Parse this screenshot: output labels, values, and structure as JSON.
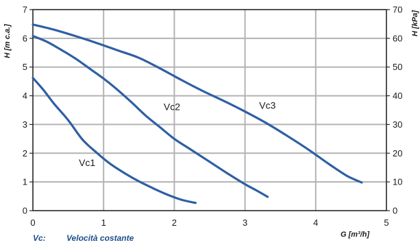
{
  "chart_data": {
    "type": "line",
    "xlabel": "G [m³/h]",
    "ylabel": "H [m c.a.]",
    "y2label": "H [kPa]",
    "xlim": [
      0,
      5
    ],
    "ylim": [
      0,
      7
    ],
    "y2lim": [
      0,
      70
    ],
    "xticks": [
      "0",
      "1",
      "2",
      "3",
      "4",
      "5"
    ],
    "yticks": [
      "0",
      "1",
      "2",
      "3",
      "4",
      "5",
      "6",
      "7"
    ],
    "y2ticks": [
      "0",
      "10",
      "20",
      "30",
      "40",
      "50",
      "60",
      "70"
    ],
    "grid": true,
    "line_color": "#2e5fa3",
    "grid_color": "#b3b3b3",
    "series": [
      {
        "name": "Vc1",
        "label_at": [
          0.65,
          1.55
        ],
        "points": [
          [
            0,
            4.62
          ],
          [
            0.15,
            4.2
          ],
          [
            0.3,
            3.72
          ],
          [
            0.5,
            3.15
          ],
          [
            0.7,
            2.48
          ],
          [
            0.9,
            2.02
          ],
          [
            1.1,
            1.62
          ],
          [
            1.3,
            1.3
          ],
          [
            1.5,
            1.02
          ],
          [
            1.7,
            0.78
          ],
          [
            1.9,
            0.56
          ],
          [
            2.1,
            0.38
          ],
          [
            2.3,
            0.27
          ]
        ]
      },
      {
        "name": "Vc2",
        "label_at": [
          1.85,
          3.5
        ],
        "points": [
          [
            0,
            6.08
          ],
          [
            0.2,
            5.88
          ],
          [
            0.4,
            5.6
          ],
          [
            0.6,
            5.3
          ],
          [
            0.8,
            4.95
          ],
          [
            1.0,
            4.6
          ],
          [
            1.2,
            4.2
          ],
          [
            1.4,
            3.76
          ],
          [
            1.6,
            3.3
          ],
          [
            1.8,
            2.9
          ],
          [
            2.0,
            2.5
          ],
          [
            2.25,
            2.1
          ],
          [
            2.5,
            1.7
          ],
          [
            2.75,
            1.3
          ],
          [
            3.0,
            0.92
          ],
          [
            3.15,
            0.72
          ],
          [
            3.32,
            0.48
          ]
        ]
      },
      {
        "name": "Vc3",
        "label_at": [
          3.2,
          3.55
        ],
        "points": [
          [
            0,
            6.48
          ],
          [
            0.3,
            6.3
          ],
          [
            0.6,
            6.08
          ],
          [
            0.9,
            5.84
          ],
          [
            1.2,
            5.58
          ],
          [
            1.5,
            5.32
          ],
          [
            1.8,
            4.95
          ],
          [
            2.1,
            4.55
          ],
          [
            2.4,
            4.17
          ],
          [
            2.7,
            3.82
          ],
          [
            3.0,
            3.45
          ],
          [
            3.3,
            3.05
          ],
          [
            3.6,
            2.6
          ],
          [
            3.9,
            2.12
          ],
          [
            4.2,
            1.6
          ],
          [
            4.45,
            1.2
          ],
          [
            4.65,
            0.98
          ]
        ]
      }
    ]
  },
  "legend": {
    "key": "Vc:",
    "text": "Velocità costante"
  }
}
